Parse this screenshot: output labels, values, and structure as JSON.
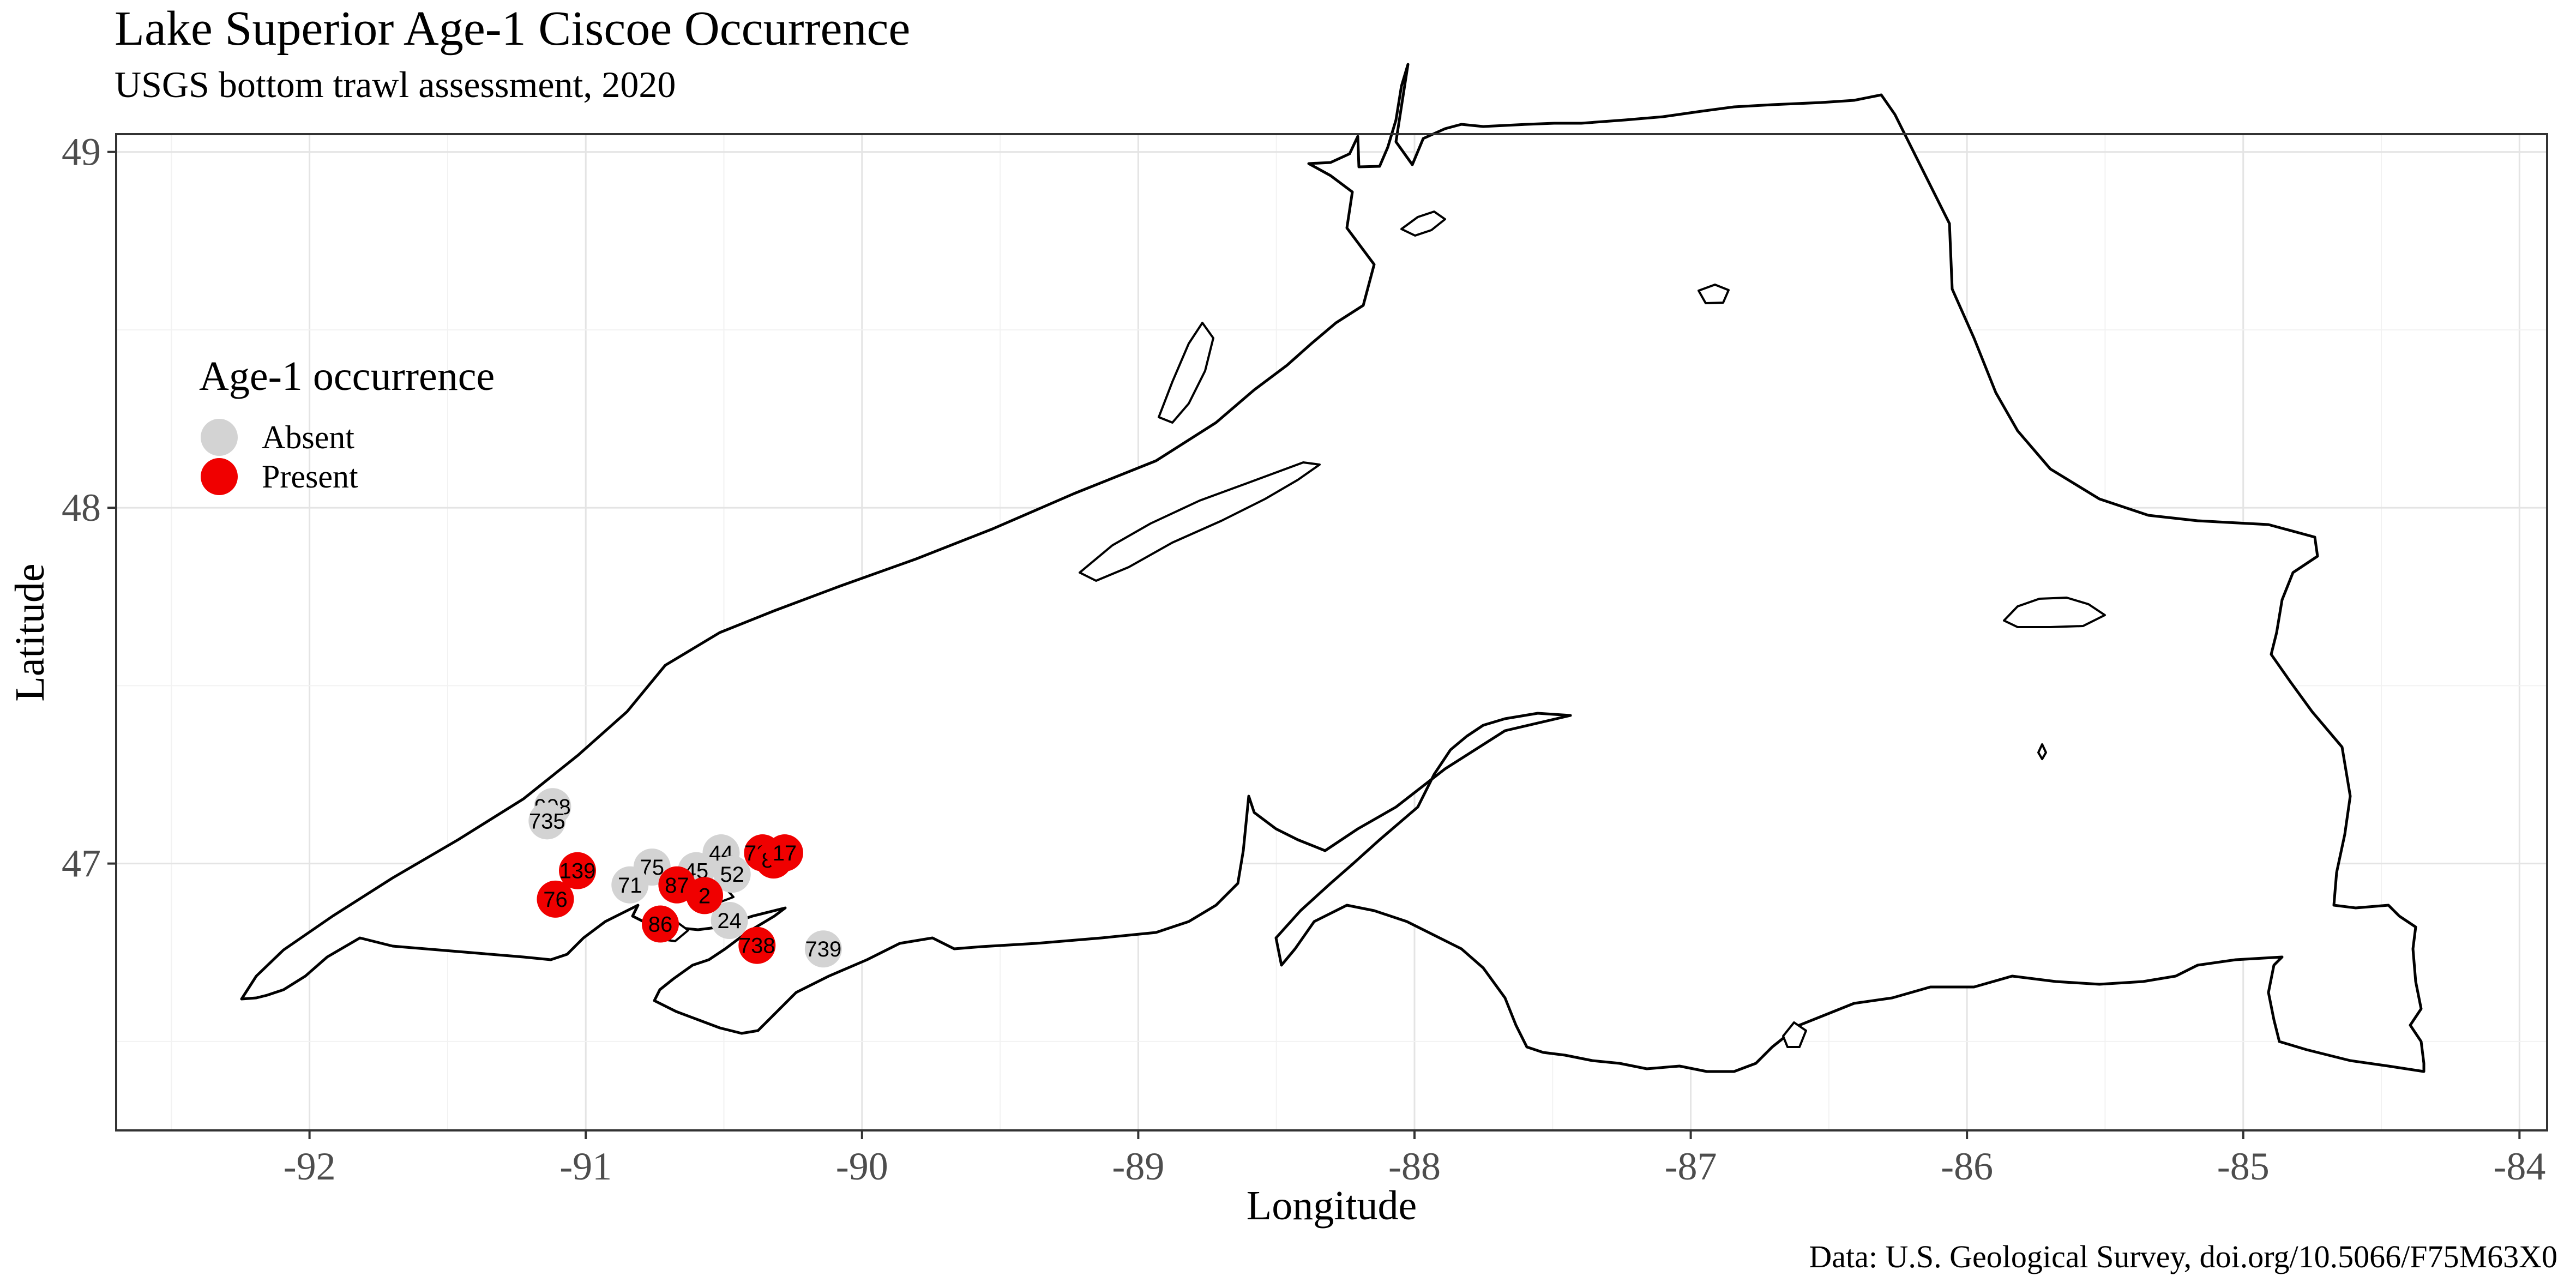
{
  "title": "Lake Superior Age-1 Ciscoe Occurrence",
  "subtitle": "USGS bottom trawl assessment, 2020",
  "caption": "Data: U.S. Geological Survey, doi.org/10.5066/F75M63X0",
  "axes": {
    "x_title": "Longitude",
    "y_title": "Latitude",
    "x_ticks": [
      "-92",
      "-91",
      "-90",
      "-89",
      "-88",
      "-87",
      "-86",
      "-85",
      "-84"
    ],
    "y_ticks": [
      "49",
      "48",
      "47"
    ]
  },
  "legend": {
    "title": "Age-1 occurrence",
    "items": [
      {
        "label": "Absent",
        "color": "#d3d3d3"
      },
      {
        "label": "Present",
        "color": "#f00000"
      }
    ]
  },
  "colors": {
    "absent": "#d3d3d3",
    "present": "#f00000"
  },
  "chart_data": {
    "type": "scatter",
    "xlim": [
      -92.7,
      -83.9
    ],
    "ylim": [
      46.25,
      49.05
    ],
    "grid": true,
    "legend_position": "left",
    "sites": [
      {
        "id": "908",
        "lon": -91.12,
        "lat": 47.16,
        "status": "Absent"
      },
      {
        "id": "735",
        "lon": -91.14,
        "lat": 47.12,
        "status": "Absent"
      },
      {
        "id": "75",
        "lon": -90.76,
        "lat": 46.99,
        "status": "Absent"
      },
      {
        "id": "71",
        "lon": -90.84,
        "lat": 46.94,
        "status": "Absent"
      },
      {
        "id": "44",
        "lon": -90.51,
        "lat": 47.03,
        "status": "Absent"
      },
      {
        "id": "45",
        "lon": -90.6,
        "lat": 46.98,
        "status": "Absent"
      },
      {
        "id": "52",
        "lon": -90.47,
        "lat": 46.97,
        "status": "Absent"
      },
      {
        "id": "24",
        "lon": -90.48,
        "lat": 46.84,
        "status": "Absent"
      },
      {
        "id": "739",
        "lon": -90.14,
        "lat": 46.76,
        "status": "Absent"
      },
      {
        "id": "139",
        "lon": -91.03,
        "lat": 46.98,
        "status": "Present"
      },
      {
        "id": "76",
        "lon": -91.11,
        "lat": 46.9,
        "status": "Present"
      },
      {
        "id": "87",
        "lon": -90.67,
        "lat": 46.94,
        "status": "Present"
      },
      {
        "id": "2",
        "lon": -90.57,
        "lat": 46.91,
        "status": "Present"
      },
      {
        "id": "86",
        "lon": -90.73,
        "lat": 46.83,
        "status": "Present"
      },
      {
        "id": "738",
        "lon": -90.38,
        "lat": 46.77,
        "status": "Present"
      },
      {
        "id": "721",
        "lon": -90.36,
        "lat": 47.03,
        "status": "Present"
      },
      {
        "id": "81",
        "lon": -90.32,
        "lat": 47.01,
        "status": "Present"
      },
      {
        "id": "17",
        "lon": -90.28,
        "lat": 47.03,
        "status": "Present"
      }
    ]
  }
}
